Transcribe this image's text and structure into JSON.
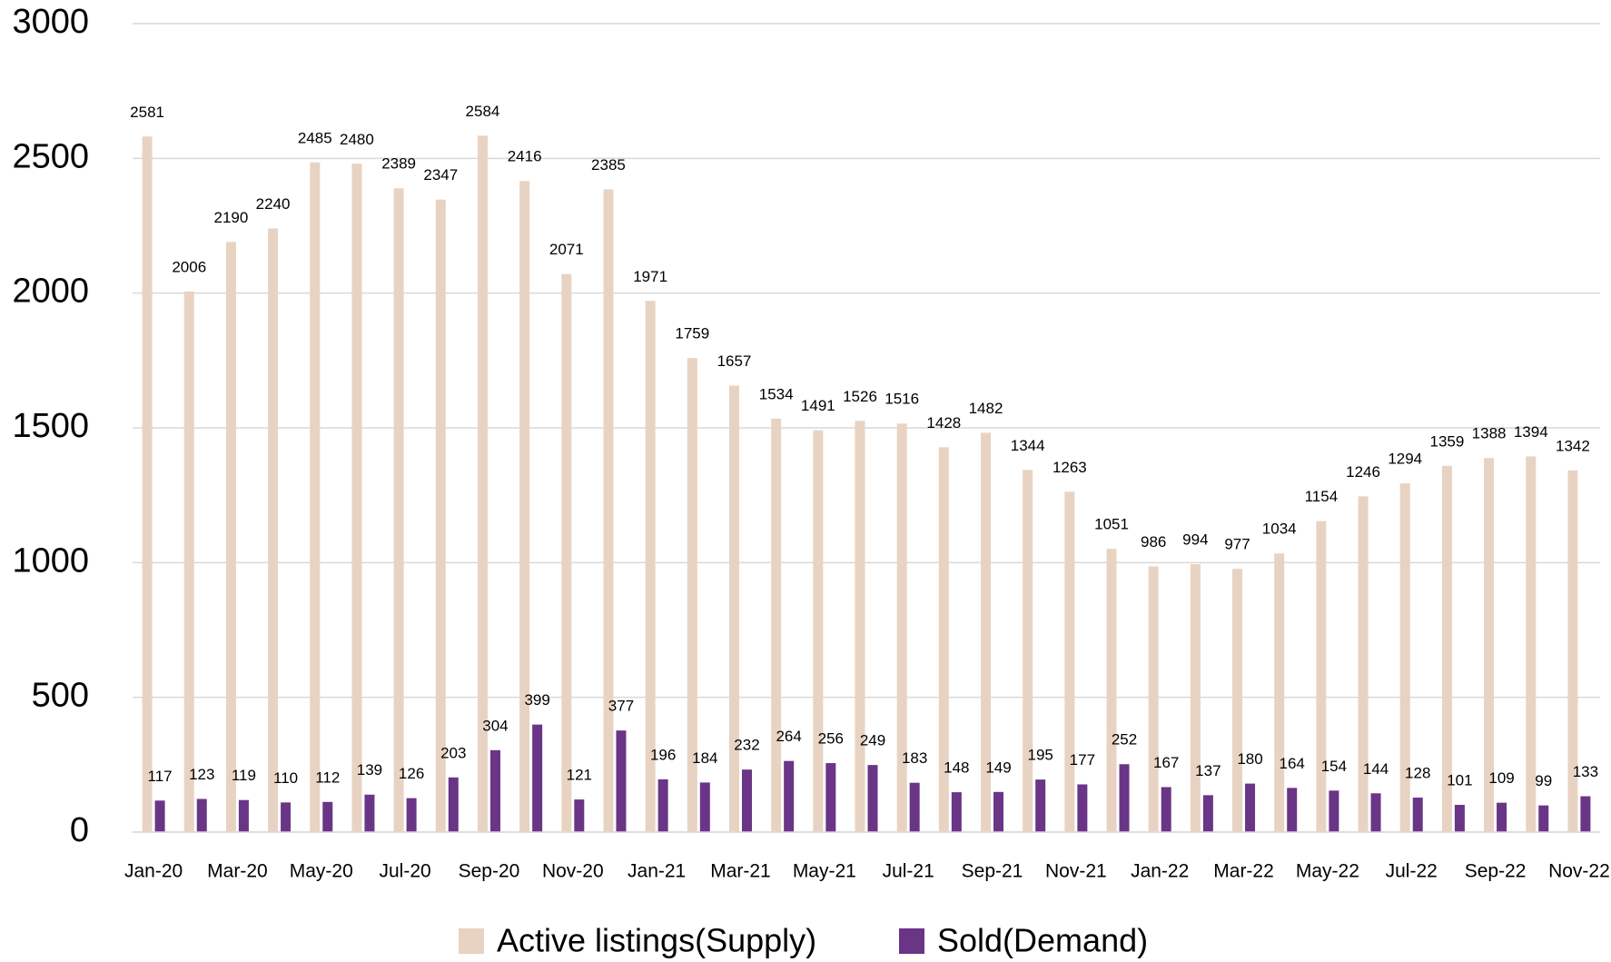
{
  "chart_data": {
    "type": "bar",
    "categories": [
      "Jan-20",
      null,
      "Mar-20",
      null,
      "May-20",
      null,
      "Jul-20",
      null,
      "Sep-20",
      null,
      "Nov-20",
      null,
      "Jan-21",
      null,
      "Mar-21",
      null,
      "May-21",
      null,
      "Jul-21",
      null,
      "Sep-21",
      null,
      "Nov-21",
      null,
      "Jan-22",
      null,
      "Mar-22",
      null,
      "May-22",
      null,
      "Jul-22",
      null,
      "Sep-22",
      null,
      "Nov-22"
    ],
    "series": [
      {
        "name": "Active listings(Supply)",
        "color": "#e8d3c2",
        "values": [
          2581,
          2006,
          2190,
          2240,
          2485,
          2480,
          2389,
          2347,
          2584,
          2416,
          2071,
          2385,
          1971,
          1759,
          1657,
          1534,
          1491,
          1526,
          1516,
          1428,
          1482,
          1344,
          1263,
          1051,
          986,
          994,
          977,
          1034,
          1154,
          1246,
          1294,
          1359,
          1388,
          1394,
          1342
        ]
      },
      {
        "name": "Sold(Demand)",
        "color": "#6a3586",
        "values": [
          117,
          123,
          119,
          110,
          112,
          139,
          126,
          203,
          304,
          399,
          121,
          377,
          196,
          184,
          232,
          264,
          256,
          249,
          183,
          148,
          149,
          195,
          177,
          252,
          167,
          137,
          180,
          164,
          154,
          144,
          128,
          101,
          109,
          99,
          133
        ]
      }
    ],
    "ylim": [
      0,
      3000
    ],
    "yticks": [
      0,
      500,
      1000,
      1500,
      2000,
      2500,
      3000
    ],
    "grid": true,
    "legend": "bottom"
  }
}
